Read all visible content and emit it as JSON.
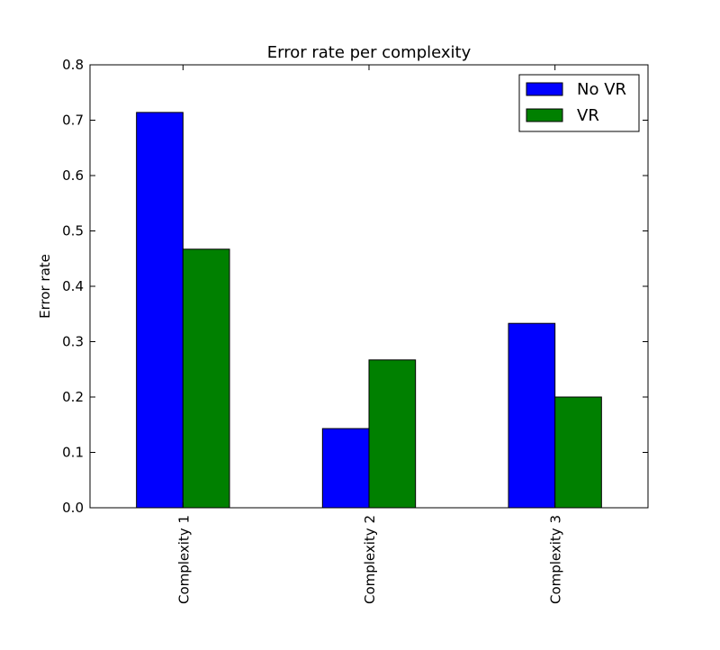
{
  "chart_data": {
    "type": "bar",
    "title": "Error rate per complexity",
    "xlabel": "",
    "ylabel": "Error rate",
    "categories": [
      "Complexity 1",
      "Complexity 2",
      "Complexity 3"
    ],
    "series": [
      {
        "name": "No VR",
        "color": "#0000ff",
        "values": [
          0.714,
          0.143,
          0.333
        ]
      },
      {
        "name": "VR",
        "color": "#008000",
        "values": [
          0.467,
          0.267,
          0.2
        ]
      }
    ],
    "ylim": [
      0,
      0.8
    ],
    "yticks": [
      "0.0",
      "0.1",
      "0.2",
      "0.3",
      "0.4",
      "0.5",
      "0.6",
      "0.7",
      "0.8"
    ],
    "legend_position": "top-right",
    "grid": false
  }
}
